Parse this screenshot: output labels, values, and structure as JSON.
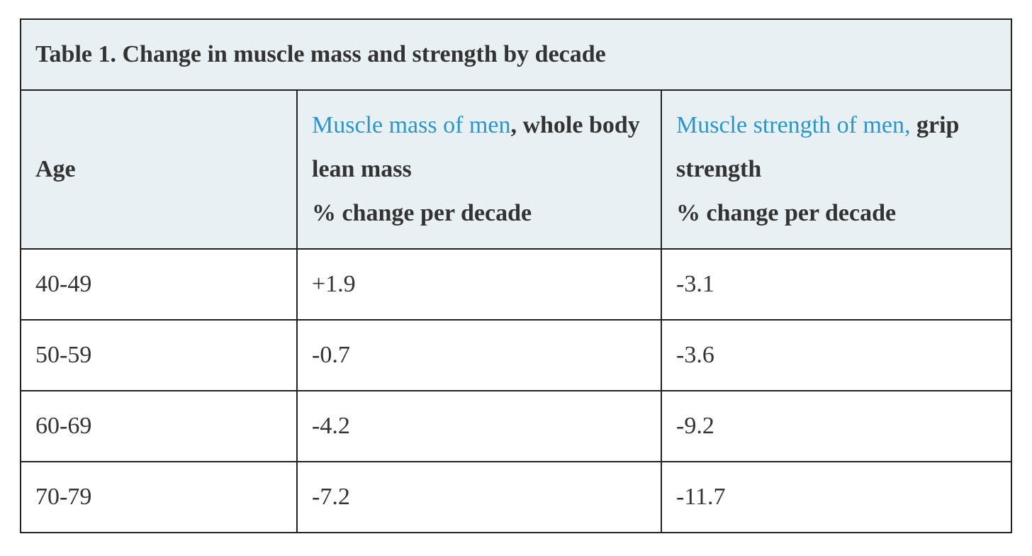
{
  "table": {
    "caption": "Table 1. Change in muscle mass and strength by decade",
    "headers": {
      "age": "Age",
      "mass_link": "Muscle mass of men",
      "mass_rest": ", whole body lean mass",
      "mass_unit": "% change per decade",
      "strength_link": "Muscle strength of men,",
      "strength_rest": " grip strength",
      "strength_unit": "% change per decade"
    },
    "rows": [
      {
        "age": "40-49",
        "mass": "+1.9",
        "strength": "-3.1"
      },
      {
        "age": "50-59",
        "mass": "-0.7",
        "strength": "-3.6"
      },
      {
        "age": "60-69",
        "mass": "-4.2",
        "strength": "-9.2"
      },
      {
        "age": "70-79",
        "mass": "-7.2",
        "strength": "-11.7"
      }
    ]
  },
  "colors": {
    "header_background": "#e8f0f4",
    "link": "#2a96cc",
    "text": "#333333",
    "border": "#222222"
  }
}
